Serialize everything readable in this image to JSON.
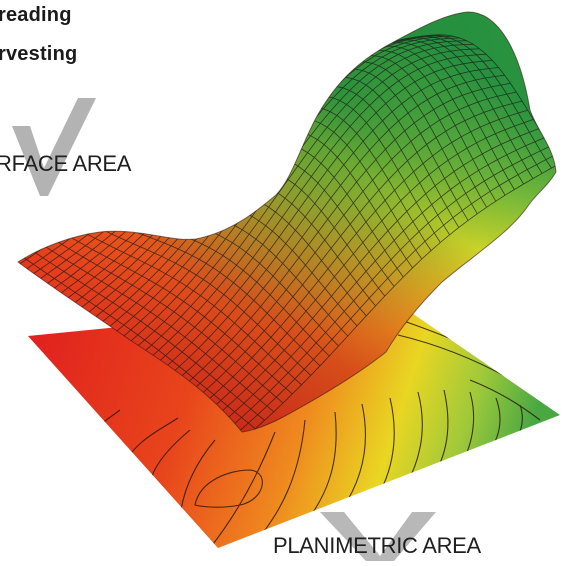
{
  "captions": {
    "line1": "reading",
    "line2": "rvesting"
  },
  "labels": {
    "surface_area": "RFACE AREA",
    "planimetric_area": "PLANIMETRIC AREA"
  },
  "icons": {
    "surface_marker": "checkmark-icon",
    "planimetric_marker": "checkmark-icon"
  },
  "colors": {
    "low": "#e0201c",
    "mid_orange": "#ee7a1e",
    "mid_yellow": "#e6dd22",
    "high_green": "#2e9a3c",
    "marker_gray": "#b3b3b3"
  }
}
